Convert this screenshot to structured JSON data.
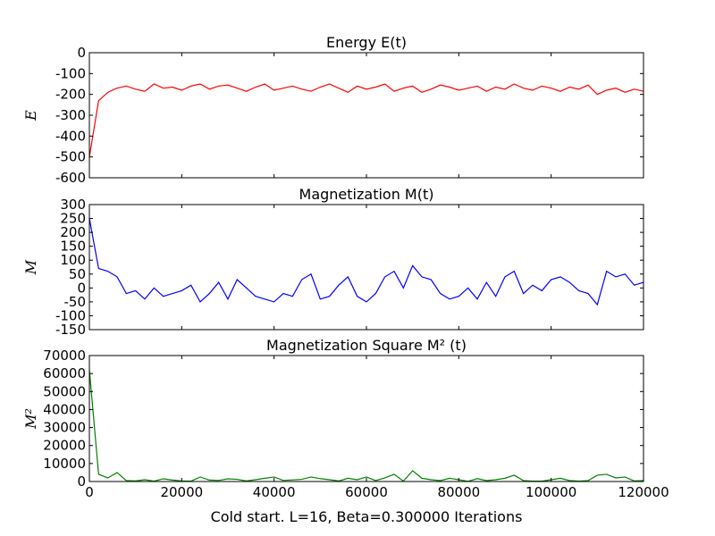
{
  "chart_data": [
    {
      "type": "line",
      "title": "Energy E(t)",
      "y_label": "E",
      "color": "#ff0000",
      "x": [
        0,
        2000,
        4000,
        6000,
        8000,
        10000,
        12000,
        14000,
        16000,
        18000,
        20000,
        22000,
        24000,
        26000,
        28000,
        30000,
        32000,
        34000,
        36000,
        38000,
        40000,
        42000,
        44000,
        46000,
        48000,
        50000,
        52000,
        54000,
        56000,
        58000,
        60000,
        62000,
        64000,
        66000,
        68000,
        70000,
        72000,
        74000,
        76000,
        78000,
        80000,
        82000,
        84000,
        86000,
        88000,
        90000,
        92000,
        94000,
        96000,
        98000,
        100000,
        102000,
        104000,
        106000,
        108000,
        110000,
        112000,
        114000,
        116000,
        118000,
        120000
      ],
      "values": [
        -500,
        -230,
        -190,
        -170,
        -160,
        -175,
        -185,
        -150,
        -170,
        -165,
        -180,
        -160,
        -150,
        -175,
        -160,
        -155,
        -170,
        -185,
        -165,
        -150,
        -180,
        -170,
        -160,
        -175,
        -185,
        -165,
        -150,
        -170,
        -190,
        -160,
        -175,
        -165,
        -150,
        -185,
        -170,
        -160,
        -190,
        -175,
        -155,
        -165,
        -180,
        -170,
        -160,
        -185,
        -165,
        -175,
        -150,
        -170,
        -180,
        -160,
        -170,
        -185,
        -165,
        -175,
        -155,
        -200,
        -180,
        -170,
        -190,
        -175,
        -185
      ],
      "xlim": [
        0,
        120000
      ],
      "ylim": [
        -600,
        0
      ],
      "yticks": [
        -600,
        -500,
        -400,
        -300,
        -200,
        -100,
        0
      ]
    },
    {
      "type": "line",
      "title": "Magnetization M(t)",
      "y_label": "M",
      "color": "#0000ff",
      "x": [
        0,
        2000,
        4000,
        6000,
        8000,
        10000,
        12000,
        14000,
        16000,
        18000,
        20000,
        22000,
        24000,
        26000,
        28000,
        30000,
        32000,
        34000,
        36000,
        38000,
        40000,
        42000,
        44000,
        46000,
        48000,
        50000,
        52000,
        54000,
        56000,
        58000,
        60000,
        62000,
        64000,
        66000,
        68000,
        70000,
        72000,
        74000,
        76000,
        78000,
        80000,
        82000,
        84000,
        86000,
        88000,
        90000,
        92000,
        94000,
        96000,
        98000,
        100000,
        102000,
        104000,
        106000,
        108000,
        110000,
        112000,
        114000,
        116000,
        118000,
        120000
      ],
      "values": [
        250,
        70,
        60,
        40,
        -20,
        -10,
        -40,
        0,
        -30,
        -20,
        -10,
        10,
        -50,
        -20,
        20,
        -40,
        30,
        0,
        -30,
        -40,
        -50,
        -20,
        -30,
        30,
        50,
        -40,
        -30,
        10,
        40,
        -30,
        -50,
        -20,
        40,
        60,
        0,
        80,
        40,
        30,
        -20,
        -40,
        -30,
        0,
        -40,
        20,
        -30,
        40,
        60,
        -20,
        10,
        -10,
        30,
        40,
        20,
        -10,
        -20,
        -60,
        60,
        40,
        50,
        10,
        20
      ],
      "xlim": [
        0,
        120000
      ],
      "ylim": [
        -150,
        300
      ],
      "yticks": [
        -150,
        -100,
        -50,
        0,
        50,
        100,
        150,
        200,
        250,
        300
      ]
    },
    {
      "type": "line",
      "title": "Magnetization Square M² (t)",
      "y_label": "M²",
      "x_label": "Cold start. L=16, Beta=0.300000 Iterations",
      "color": "#008000",
      "x": [
        0,
        2000,
        4000,
        6000,
        8000,
        10000,
        12000,
        14000,
        16000,
        18000,
        20000,
        22000,
        24000,
        26000,
        28000,
        30000,
        32000,
        34000,
        36000,
        38000,
        40000,
        42000,
        44000,
        46000,
        48000,
        50000,
        52000,
        54000,
        56000,
        58000,
        60000,
        62000,
        64000,
        66000,
        68000,
        70000,
        72000,
        74000,
        76000,
        78000,
        80000,
        82000,
        84000,
        86000,
        88000,
        90000,
        92000,
        94000,
        96000,
        98000,
        100000,
        102000,
        104000,
        106000,
        108000,
        110000,
        112000,
        114000,
        116000,
        118000,
        120000
      ],
      "values": [
        62000,
        4000,
        2000,
        5000,
        500,
        300,
        1000,
        200,
        1500,
        800,
        300,
        200,
        2500,
        800,
        600,
        1500,
        1200,
        300,
        1000,
        1800,
        2500,
        600,
        900,
        1200,
        2500,
        1600,
        1000,
        300,
        1800,
        1000,
        2500,
        500,
        2000,
        4000,
        200,
        6000,
        1800,
        1000,
        500,
        1800,
        1000,
        100,
        1600,
        500,
        1000,
        1800,
        3500,
        500,
        200,
        200,
        1000,
        1800,
        500,
        200,
        500,
        3500,
        4000,
        2000,
        2500,
        300,
        500
      ],
      "xlim": [
        0,
        120000
      ],
      "ylim": [
        0,
        70000
      ],
      "yticks": [
        0,
        10000,
        20000,
        30000,
        40000,
        50000,
        60000,
        70000
      ],
      "xticks": [
        0,
        20000,
        40000,
        60000,
        80000,
        100000,
        120000
      ]
    }
  ]
}
